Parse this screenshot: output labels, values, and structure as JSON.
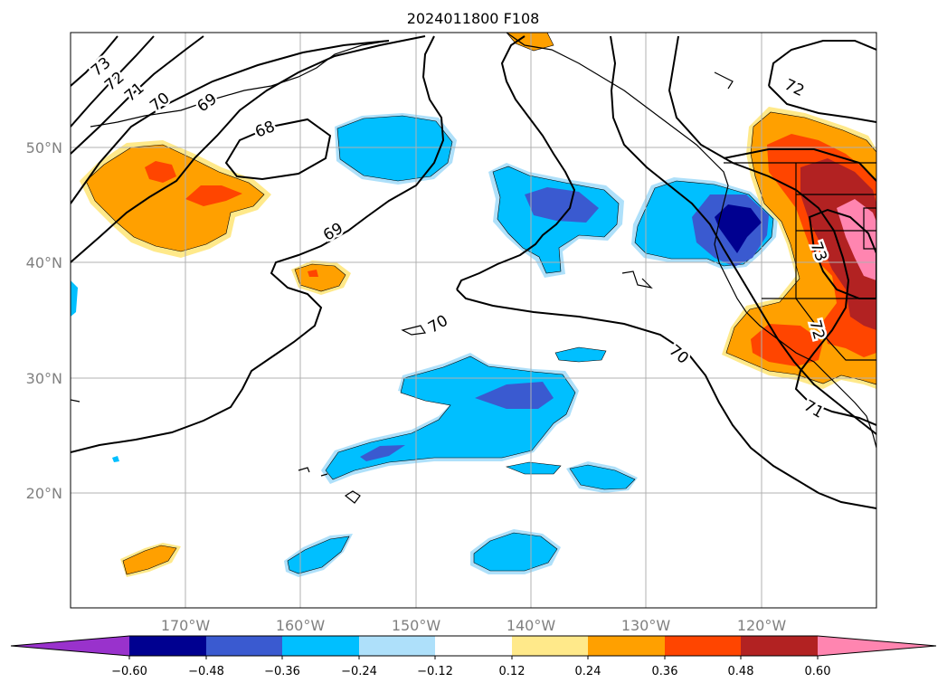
{
  "title": "2024011800 F108",
  "map": {
    "lon_ticks": [
      {
        "lon": -170,
        "label": "170°W"
      },
      {
        "lon": -160,
        "label": "160°W"
      },
      {
        "lon": -150,
        "label": "150°W"
      },
      {
        "lon": -140,
        "label": "140°W"
      },
      {
        "lon": -130,
        "label": "130°W"
      },
      {
        "lon": -120,
        "label": "120°W"
      }
    ],
    "lat_ticks": [
      {
        "lat": 50,
        "label": "50°N"
      },
      {
        "lat": 40,
        "label": "40°N"
      },
      {
        "lat": 30,
        "label": "30°N"
      },
      {
        "lat": 20,
        "label": "20°N"
      }
    ],
    "contour_labels": [
      "73",
      "72",
      "71",
      "70",
      "69",
      "68",
      "69",
      "70",
      "70",
      "72",
      "73",
      "72",
      "71"
    ],
    "colors": {
      "purple": "#9932cc",
      "navy": "#000090",
      "blue": "#3a5ad0",
      "cyan": "#00bfff",
      "light_blue": "#aee0fa",
      "white": "#ffffff",
      "light_yellow": "#ffe98a",
      "orange": "#ffa000",
      "red_orange": "#ff4500",
      "dark_red": "#b22222",
      "pink": "#ff85b0"
    }
  },
  "colorbar": {
    "ticks": [
      "−0.60",
      "−0.48",
      "−0.36",
      "−0.24",
      "−0.12",
      "0.12",
      "0.24",
      "0.36",
      "0.48",
      "0.60"
    ]
  }
}
